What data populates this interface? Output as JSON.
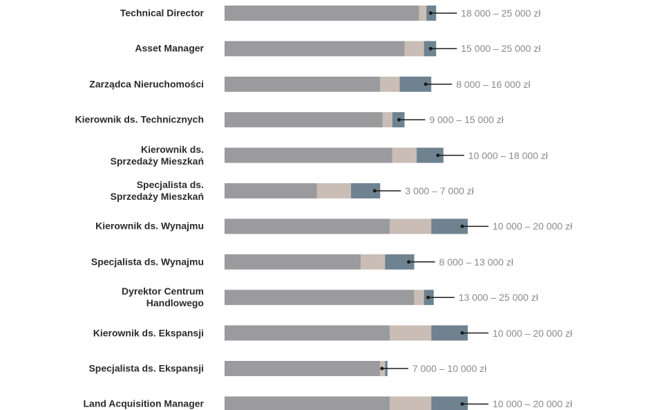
{
  "chart_data": {
    "type": "bar",
    "subtype": "stacked-horizontal-salary-range",
    "title": "",
    "xlabel": "",
    "ylabel": "",
    "scale_note": "segment ends on a 0-100 relative index",
    "colors": {
      "base": "#9b9b9d",
      "mid": "#c9bdb5",
      "top": "#6e8290",
      "marker": "#1a1a1a",
      "label": "#8a8a8a"
    },
    "rows": [
      {
        "label": "Technical Director",
        "range": "18 000 – 25 000 zł",
        "segments": [
          80,
          83,
          87
        ]
      },
      {
        "label": "Asset Manager",
        "range": "15 000 – 25 000 zł",
        "segments": [
          74,
          82,
          87
        ]
      },
      {
        "label": "Zarządca Nieruchomości",
        "range": "8 000 – 16 000 zł",
        "segments": [
          64,
          72,
          85
        ]
      },
      {
        "label": "Kierownik ds. Technicznych",
        "range": "9 000 – 15 000 zł",
        "segments": [
          65,
          69,
          74
        ]
      },
      {
        "label": "Kierownik ds.\nSprzedaży Mieszkań",
        "range": "10 000 – 18 000 zł",
        "segments": [
          69,
          79,
          90
        ]
      },
      {
        "label": "Specjalista ds.\nSprzedaży Mieszkań",
        "range": "3 000 – 7 000 zł",
        "segments": [
          38,
          52,
          64
        ]
      },
      {
        "label": "Kierownik ds. Wynajmu",
        "range": "10 000 – 20 000 zł",
        "segments": [
          68,
          85,
          100
        ]
      },
      {
        "label": "Specjalista ds. Wynajmu",
        "range": "8 000 – 13 000 zł",
        "segments": [
          56,
          66,
          78
        ]
      },
      {
        "label": "Dyrektor Centrum\nHandlowego",
        "range": "13 000 – 25 000 zł",
        "segments": [
          78,
          82,
          86
        ]
      },
      {
        "label": "Kierownik ds. Ekspansji",
        "range": "10 000 – 20 000 zł",
        "segments": [
          68,
          85,
          100
        ]
      },
      {
        "label": "Specjalista ds. Ekspansji",
        "range": "7 000 – 10 000 zł",
        "segments": [
          64,
          66,
          67
        ]
      },
      {
        "label": "Land Acquisition Manager",
        "range": "10 000 – 20 000 zł",
        "segments": [
          68,
          85,
          100
        ]
      }
    ]
  }
}
